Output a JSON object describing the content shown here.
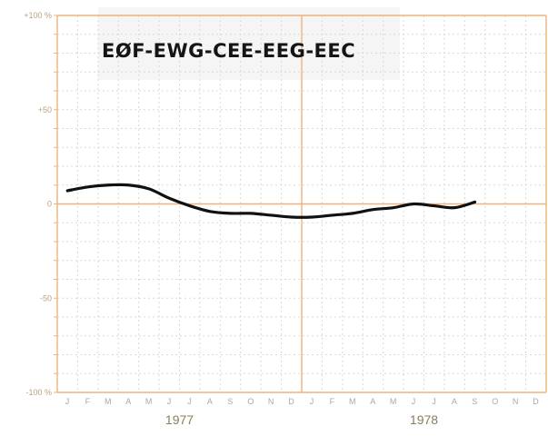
{
  "chart_data": {
    "type": "line",
    "title": "EØF-EWG-CEE-EEG-EEC",
    "ylim": [
      -100,
      100
    ],
    "y_ticks": [
      "+100 %",
      "+50",
      "0",
      "-50",
      "-100 %"
    ],
    "y_tick_values": [
      100,
      50,
      0,
      -50,
      -100
    ],
    "x_month_ticks": [
      "J",
      "F",
      "M",
      "A",
      "M",
      "J",
      "J",
      "A",
      "S",
      "O",
      "N",
      "D",
      "J",
      "F",
      "M",
      "A",
      "M",
      "J",
      "J",
      "A",
      "S",
      "O",
      "N",
      "D"
    ],
    "years": [
      "1977",
      "1978"
    ],
    "grid": true,
    "series": [
      {
        "values": [
          7,
          9,
          10,
          10,
          8,
          3,
          -1,
          -4,
          -5,
          -5,
          -6,
          -7,
          -7,
          -6,
          -5,
          -3,
          -2,
          0,
          -1,
          -2,
          1
        ]
      }
    ]
  },
  "colors": {
    "axis": "#f0b27a",
    "grid": "#d9d9d9",
    "line": "#111111"
  }
}
